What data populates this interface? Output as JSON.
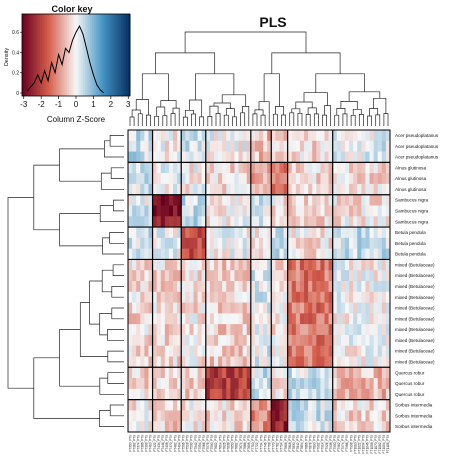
{
  "chart_data": {
    "type": "heatmap",
    "title": "PLS",
    "color_key": {
      "title": "Color key",
      "xlabel": "Column Z-Score",
      "ylabel": "Density",
      "xticks": [
        "-3",
        "-2",
        "-1",
        "0",
        "1",
        "2",
        "3"
      ],
      "yticks": [
        "0",
        "0.2",
        "0.4",
        "0.6"
      ],
      "density_x": [
        -2.8,
        -2.6,
        -2.4,
        -2.2,
        -2.0,
        -1.8,
        -1.6,
        -1.4,
        -1.2,
        -1.0,
        -0.8,
        -0.6,
        -0.4,
        -0.2,
        0.0,
        0.2,
        0.4,
        0.6,
        0.8,
        1.0,
        1.2,
        1.4,
        1.6
      ],
      "density_y": [
        0.02,
        0.06,
        0.1,
        0.18,
        0.1,
        0.22,
        0.12,
        0.3,
        0.2,
        0.38,
        0.28,
        0.44,
        0.4,
        0.52,
        0.6,
        0.66,
        0.58,
        0.44,
        0.3,
        0.18,
        0.08,
        0.03,
        0.0
      ],
      "colors": {
        "low": "#67001f",
        "mid_low": "#d6604d",
        "center": "#f7f7f7",
        "mid_high": "#4393c3",
        "high": "#053061"
      },
      "range": [
        -3,
        3
      ]
    },
    "row_labels": [
      "Acer pseudoplatanus",
      "Acer pseudoplatanus",
      "Acer pseudoplatanus",
      "Alnus glutinosa",
      "Alnus glutinosa",
      "Alnus glutinosa",
      "Sambucus nigra",
      "Sambucus nigra",
      "Sambucus nigra",
      "Betula pendula",
      "Betula pendula",
      "Betula pendula",
      "mixed (Betulaceae)",
      "mixed (Betulaceae)",
      "mixed (Betulaceae)",
      "mixed (Betulaceae)",
      "mixed (Betulaceae)",
      "mixed (Betulaceae)",
      "mixed (Betulaceae)",
      "mixed (Betulaceae)",
      "mixed (Betulaceae)",
      "mixed (Betulaceae)",
      "Quercus robur",
      "Quercus robur",
      "Quercus robur",
      "Sorbus intermedia",
      "Sorbus intermedia",
      "Sorbus intermedia"
    ],
    "row_groups": [
      {
        "name": "Acer pseudoplatanus",
        "size": 3
      },
      {
        "name": "Alnus glutinosa",
        "size": 3
      },
      {
        "name": "Sambucus nigra",
        "size": 3
      },
      {
        "name": "Betula pendula",
        "size": 3
      },
      {
        "name": "mixed (Betulaceae)",
        "size": 10
      },
      {
        "name": "Quercus robur",
        "size": 3
      },
      {
        "name": "Sorbus intermedia",
        "size": 3
      }
    ],
    "n_columns": 64,
    "column_group_sizes": [
      6,
      7,
      6,
      11,
      5,
      4,
      11,
      14
    ],
    "column_labels": [
      "FT350_P79",
      "FT362_P79",
      "FT374_P79",
      "FT386_P79",
      "FT398_P79",
      "FT410_P79",
      "FT422_P79",
      "FT434_P79",
      "FT446_P79",
      "FT458_P79",
      "FT470_P79",
      "FT482_P79",
      "FT494_P79",
      "FT506_P79",
      "FT518_P79",
      "FT530_P79",
      "FT542_P79",
      "FT554_P79",
      "FT566_P79",
      "FT578_P79",
      "FT590_P79",
      "FT602_P79",
      "FT614_P79",
      "FT626_P79",
      "FT638_P79",
      "FT650_P79",
      "FT662_P79",
      "FT674_P79",
      "FT686_P79",
      "FT698_P79",
      "FT710_P79",
      "FT722_P79",
      "FT734_P79",
      "FT746_P79",
      "FT758_P79",
      "FT770_P79",
      "FT782_P79",
      "FT794_P79",
      "FT806_P79",
      "FT818_P79",
      "FT830_P79",
      "FT842_P79",
      "FT854_P79",
      "FT866_P79",
      "FT878_P79",
      "FT890_P79",
      "FT902_P79",
      "FT914_P79",
      "FT926_P79",
      "FT938_P79",
      "FT950_P79",
      "FT962_P79",
      "FT974_P79",
      "FT986_P79",
      "FT998_P79",
      "FT1010_P79",
      "FT1022_P79",
      "FT1034_P79",
      "FT1046_P79",
      "FT1058_P79",
      "FT1070_P79",
      "FT1082_P79",
      "FT1094_P79",
      "FT1106_P79"
    ],
    "profiles": [
      [
        -0.4,
        0.1,
        -0.3,
        0.0,
        0.6,
        0.4,
        0.3,
        -0.2
      ],
      [
        -0.3,
        0.0,
        0.1,
        0.3,
        0.9,
        1.3,
        0.3,
        0.3
      ],
      [
        -0.2,
        2.6,
        -0.4,
        0.1,
        -0.2,
        0.2,
        0.3,
        0.2
      ],
      [
        -0.3,
        -0.1,
        1.8,
        0.0,
        0.1,
        -0.3,
        0.2,
        -0.4
      ],
      [
        0.3,
        0.3,
        0.2,
        0.4,
        -0.2,
        0.2,
        1.3,
        0.0
      ],
      [
        0.3,
        0.2,
        0.4,
        2.0,
        -0.3,
        0.2,
        -0.3,
        0.6
      ],
      [
        0.1,
        0.4,
        0.1,
        0.3,
        1.0,
        2.4,
        -0.3,
        0.3
      ]
    ]
  }
}
